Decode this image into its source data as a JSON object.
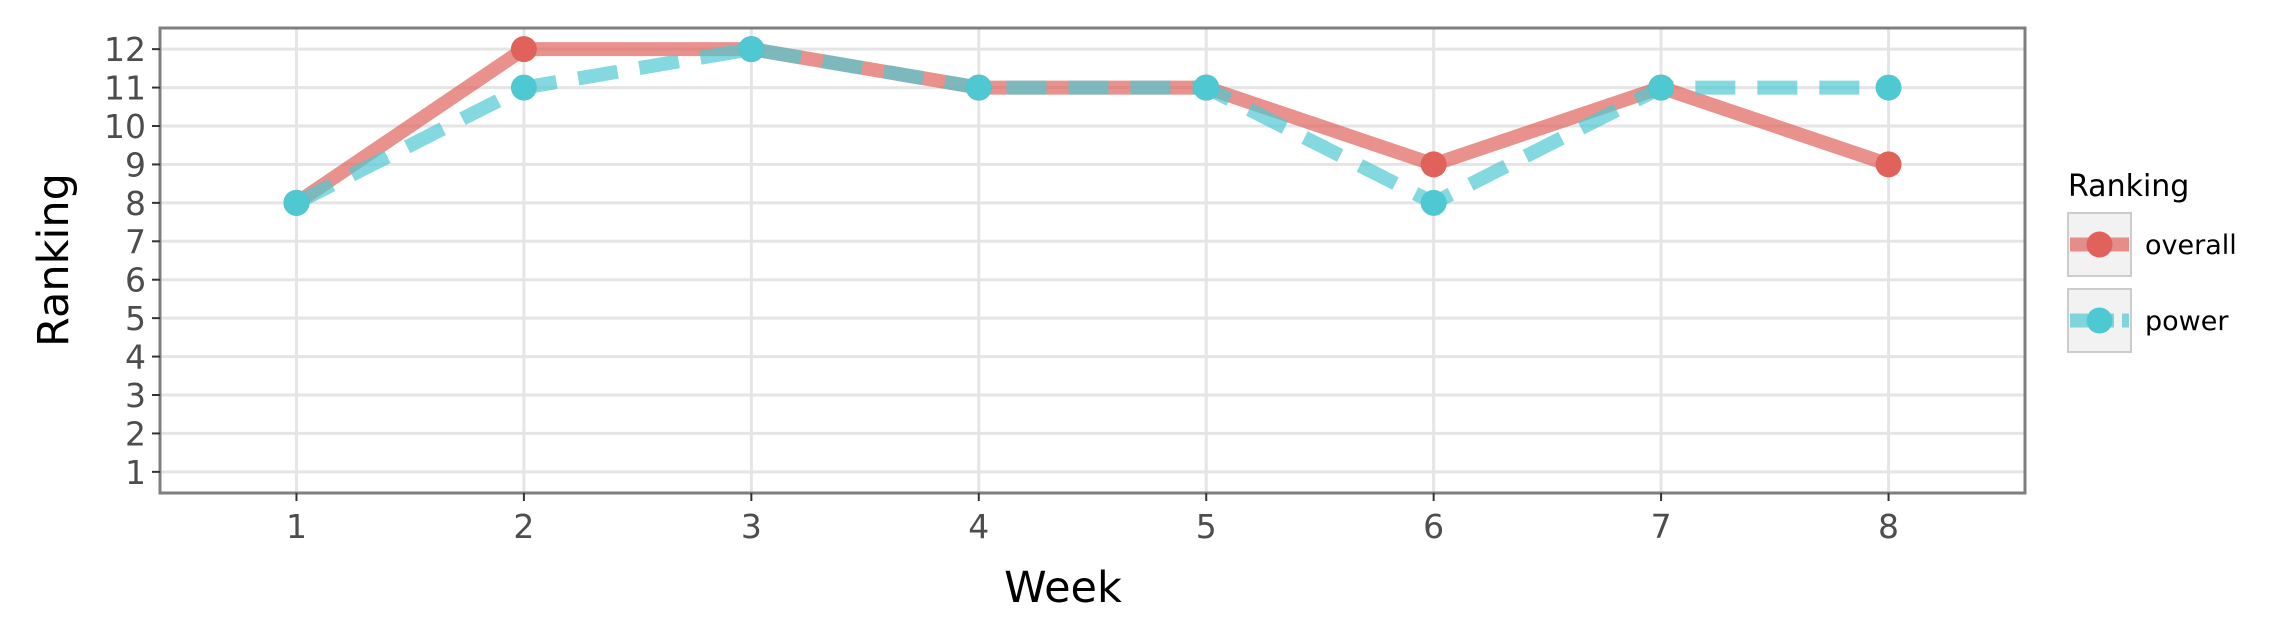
{
  "chart_data": {
    "type": "line",
    "xlabel": "Week",
    "ylabel": "Ranking",
    "x": [
      1,
      2,
      3,
      4,
      5,
      6,
      7,
      8
    ],
    "xlim": [
      0.4,
      8.6
    ],
    "ylim": [
      12.55,
      0.45
    ],
    "y_reversed": true,
    "x_ticks": [
      1,
      2,
      3,
      4,
      5,
      6,
      7,
      8
    ],
    "y_ticks": [
      1,
      2,
      3,
      4,
      5,
      6,
      7,
      8,
      9,
      10,
      11,
      12
    ],
    "grid": true,
    "legend": {
      "title": "Ranking",
      "position": "right"
    },
    "series": [
      {
        "name": "overall",
        "values": [
          8,
          12,
          12,
          11,
          11,
          9,
          11,
          9
        ],
        "color": "#e0625b",
        "dash": "solid"
      },
      {
        "name": "power",
        "values": [
          8,
          11,
          12,
          11,
          11,
          8,
          11,
          11
        ],
        "color": "#4ec9d1",
        "dash": "dashed"
      }
    ]
  }
}
